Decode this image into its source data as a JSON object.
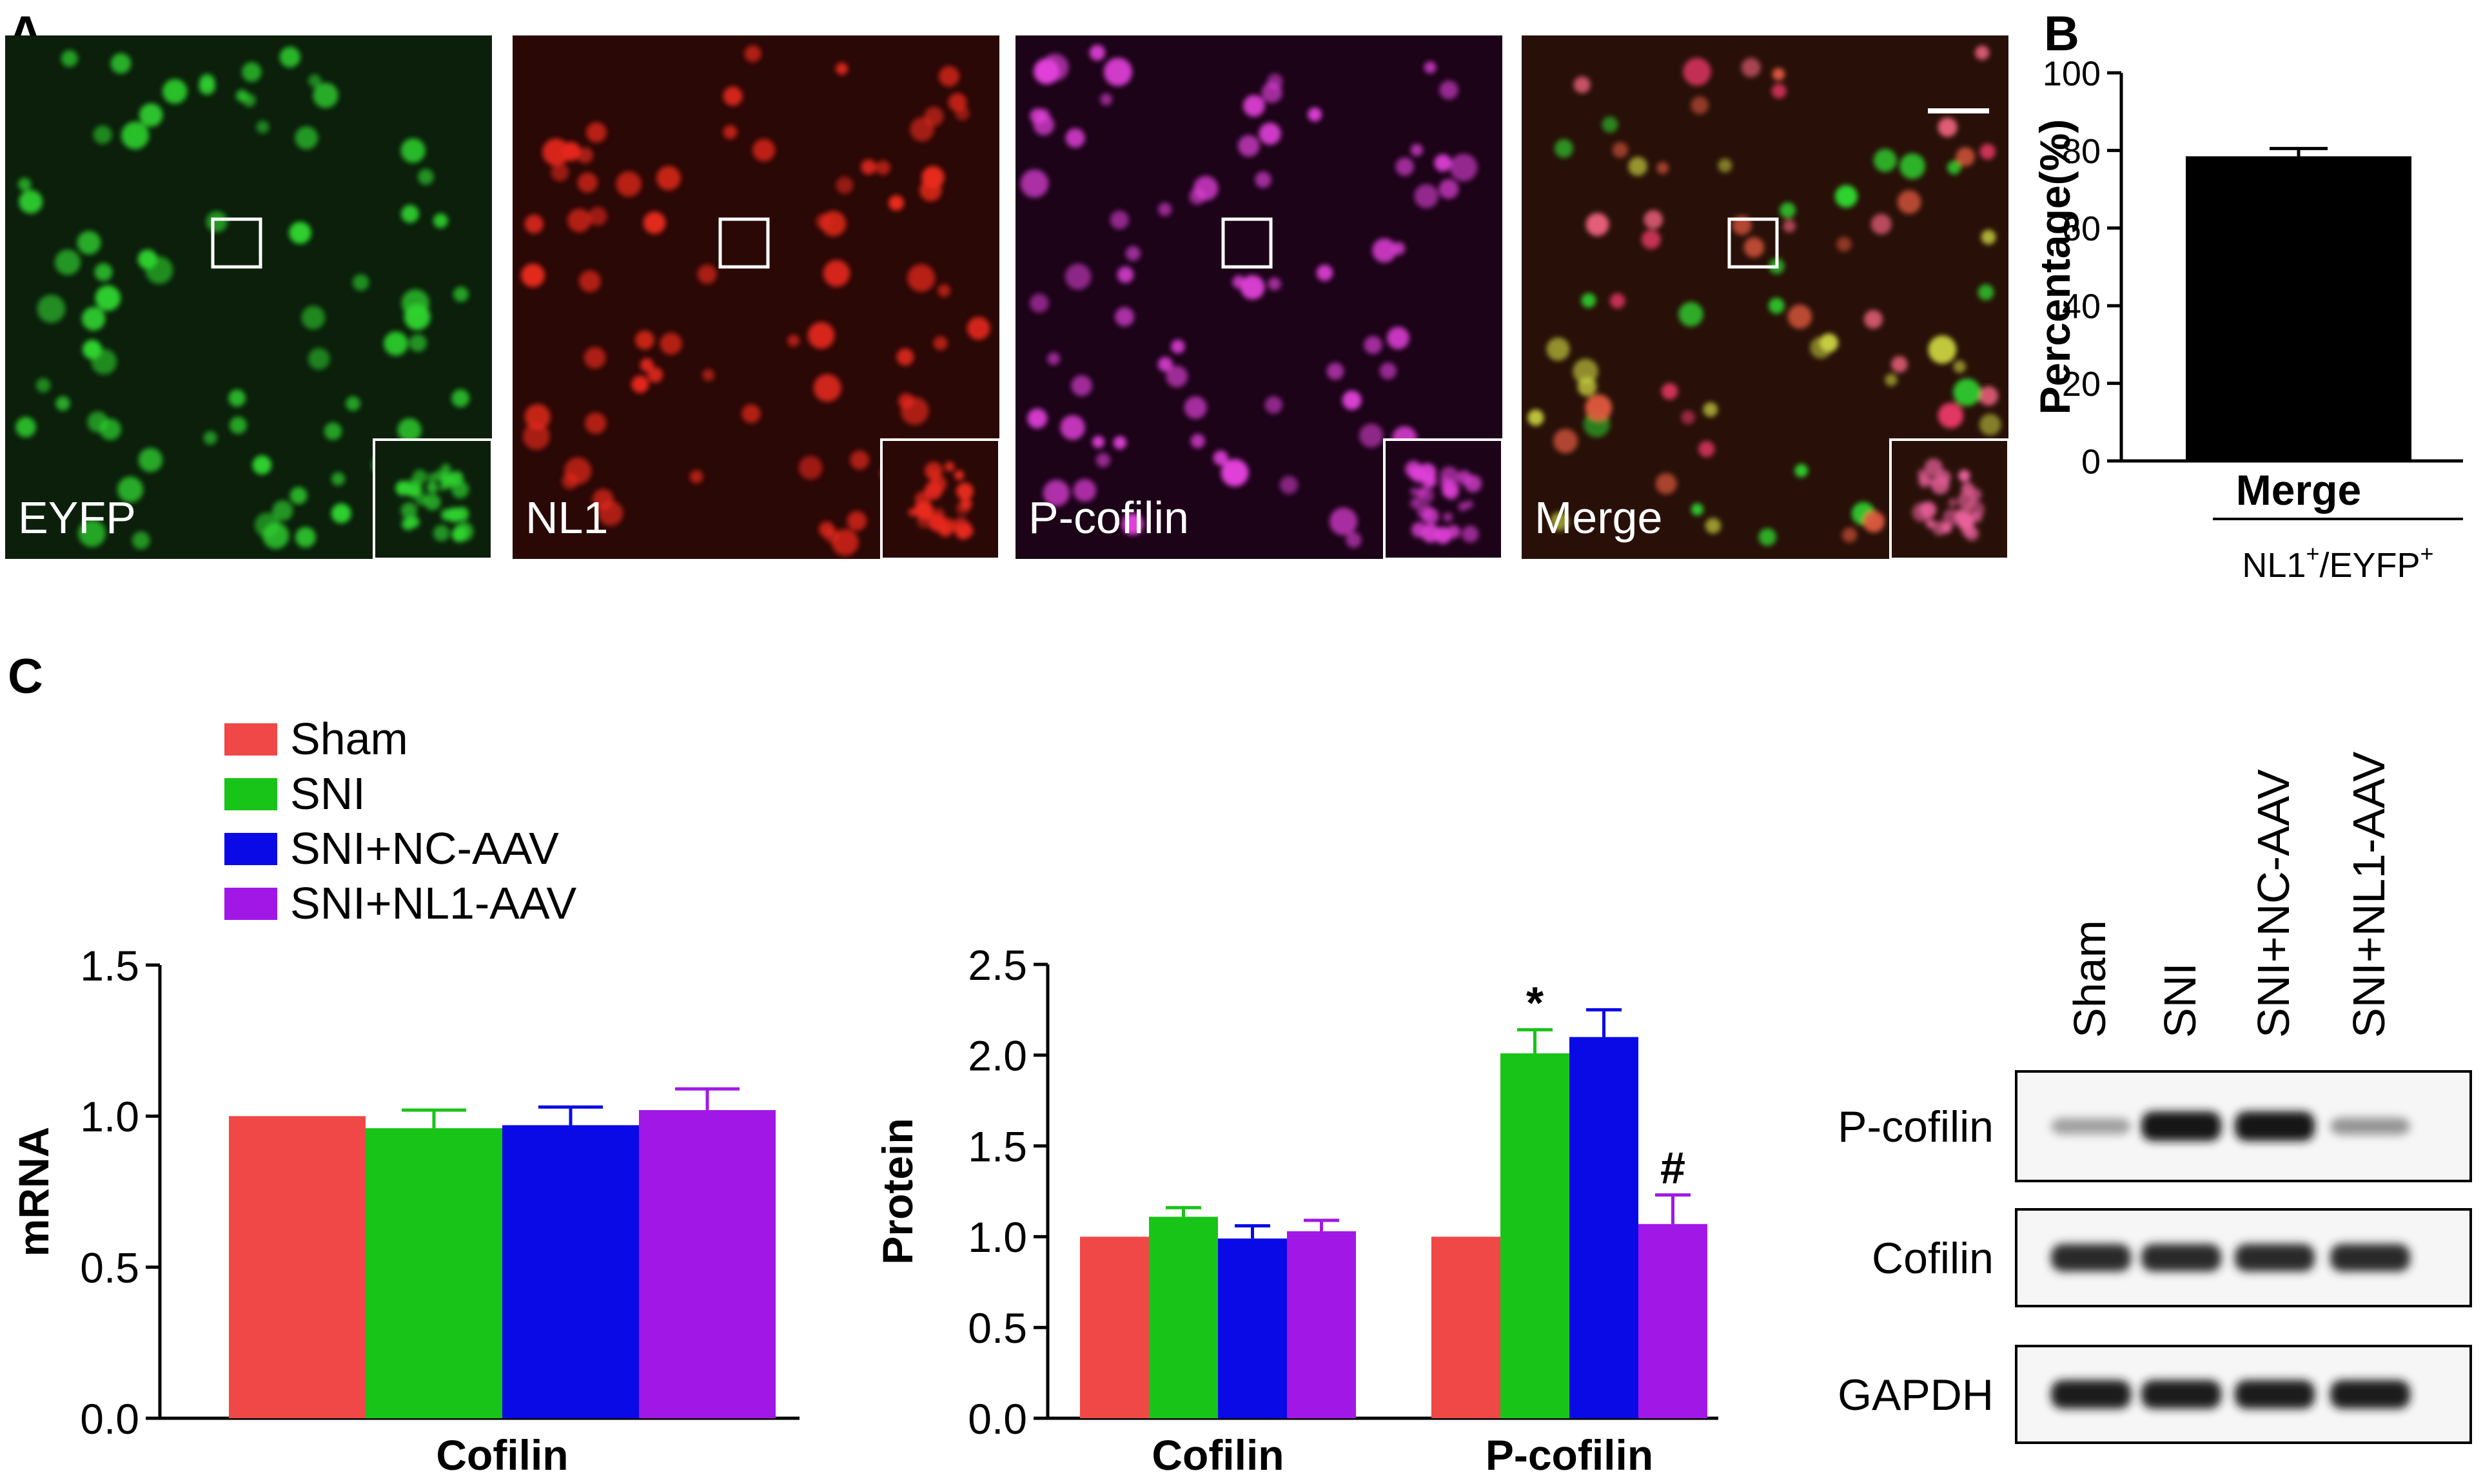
{
  "panel_letters": [
    "A",
    "B",
    "C"
  ],
  "micrographs": [
    {
      "label": "EYFP",
      "base": "#0b1f0b",
      "cell": "#2fd32f"
    },
    {
      "label": "NL1",
      "base": "#2a0806",
      "cell": "#e8291c"
    },
    {
      "label": "P-cofilin",
      "base": "#1c0318",
      "cell": "#e040d8"
    },
    {
      "label": "Merge",
      "base": "#281008",
      "cell": "#e8607a"
    }
  ],
  "colors": {
    "Sham": "#f04747",
    "SNI": "#19c419",
    "SNI+NC-AAV": "#0a0ae6",
    "SNI+NL1-AAV": "#a118e6",
    "bar_black": "#000000"
  },
  "legend": [
    "Sham",
    "SNI",
    "SNI+NC-AAV",
    "SNI+NL1-AAV"
  ],
  "chart_data": [
    {
      "panel": "B",
      "type": "bar",
      "categories": [
        "Merge"
      ],
      "values": [
        78.5
      ],
      "errors": [
        2
      ],
      "ylabel": "Percentage(%)",
      "xlabel_parts": [
        "NL1",
        "+",
        "/EYFP",
        "+"
      ],
      "ylim": [
        0,
        100
      ],
      "yticks": [
        "0",
        "20",
        "40",
        "60",
        "80",
        "100"
      ]
    },
    {
      "panel": "C-mRNA",
      "type": "bar",
      "categories": [
        "Cofilin"
      ],
      "series": [
        {
          "name": "Sham",
          "values": [
            1.0
          ],
          "errors": [
            0
          ]
        },
        {
          "name": "SNI",
          "values": [
            0.96
          ],
          "errors": [
            0.06
          ]
        },
        {
          "name": "SNI+NC-AAV",
          "values": [
            0.97
          ],
          "errors": [
            0.06
          ]
        },
        {
          "name": "SNI+NL1-AAV",
          "values": [
            1.02
          ],
          "errors": [
            0.07
          ]
        }
      ],
      "ylabel": "mRNA",
      "ylim": [
        0,
        1.5
      ],
      "yticks": [
        "0.0",
        "0.5",
        "1.0",
        "1.5"
      ]
    },
    {
      "panel": "C-Protein",
      "type": "bar",
      "categories": [
        "Cofilin",
        "P-cofilin"
      ],
      "series": [
        {
          "name": "Sham",
          "values": [
            1.0,
            1.0
          ],
          "errors": [
            0,
            0
          ]
        },
        {
          "name": "SNI",
          "values": [
            1.11,
            2.01
          ],
          "errors": [
            0.05,
            0.13
          ]
        },
        {
          "name": "SNI+NC-AAV",
          "values": [
            0.99,
            2.1
          ],
          "errors": [
            0.07,
            0.15
          ]
        },
        {
          "name": "SNI+NL1-AAV",
          "values": [
            1.03,
            1.07
          ],
          "errors": [
            0.06,
            0.16
          ]
        }
      ],
      "annotations": [
        {
          "category": "P-cofilin",
          "series": "SNI",
          "text": "*"
        },
        {
          "category": "P-cofilin",
          "series": "SNI+NL1-AAV",
          "text": "#"
        }
      ],
      "ylabel": "Protein",
      "ylim": [
        0,
        2.5
      ],
      "yticks": [
        "0.0",
        "0.5",
        "1.0",
        "1.5",
        "2.0",
        "2.5"
      ]
    }
  ],
  "blot": {
    "lanes": [
      "Sham",
      "SNI",
      "SNI+NC-AAV",
      "SNI+NL1-AAV"
    ],
    "rows": [
      {
        "label": "P-cofilin",
        "intensity": [
          0.35,
          1.0,
          1.0,
          0.4
        ]
      },
      {
        "label": "Cofilin",
        "intensity": [
          0.9,
          0.9,
          0.9,
          0.9
        ]
      },
      {
        "label": "GAPDH",
        "intensity": [
          0.95,
          0.95,
          0.95,
          0.95
        ]
      }
    ]
  }
}
